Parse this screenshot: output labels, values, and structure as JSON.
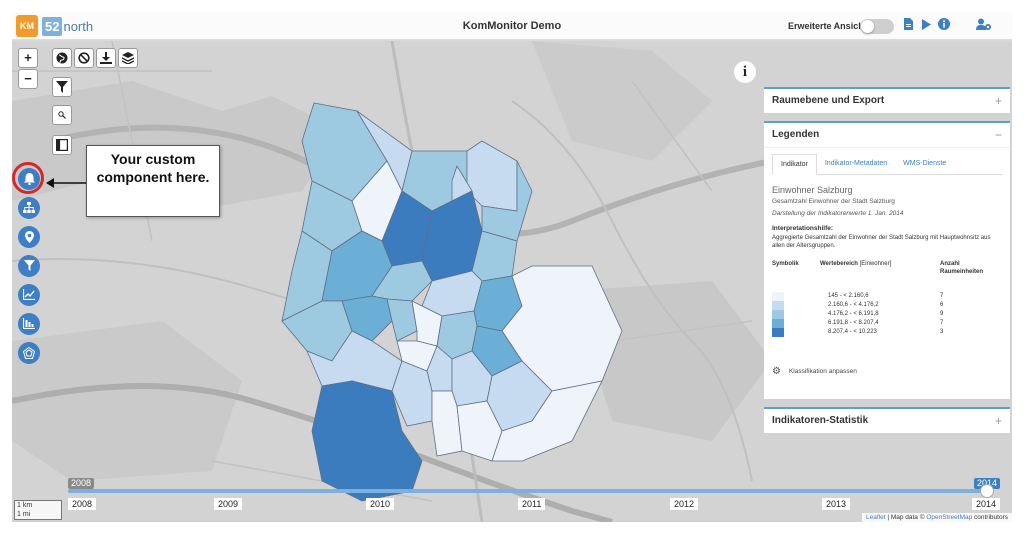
{
  "header": {
    "logo_left": "KM",
    "logo_right_num": "52",
    "logo_right_word": "north",
    "title": "KomMonitor Demo",
    "toggle_label": "Erweiterte Ansicht",
    "icons": [
      "document-icon",
      "play-icon",
      "info-icon",
      "user-settings-icon"
    ]
  },
  "map_controls": {
    "zoom_in": "+",
    "zoom_out": "−",
    "tools": [
      "globe-icon",
      "ban-icon",
      "download-icon",
      "layers-icon"
    ],
    "sidebar_buttons": [
      "bell-icon",
      "sitemap-icon",
      "location-pin-icon",
      "filter-icon",
      "line-chart-icon",
      "bar-chart-icon",
      "radar-icon"
    ]
  },
  "callout": {
    "text": "Your custom component here."
  },
  "info_button": "i",
  "panels": {
    "raumebene": {
      "title": "Raumebene und Export",
      "toggle": "+"
    },
    "legenden": {
      "title": "Legenden",
      "toggle": "−",
      "tabs": [
        "Indikator",
        "Indikator-Metadaten",
        "WMS-Dienste"
      ],
      "active_tab": 0,
      "indicator_title": "Einwohner Salzburg",
      "indicator_subtitle": "Gesamtzahl Einwohner der Stadt Salzburg",
      "indicator_date": "Darstellung der Indikatorenwerte 1. Jan. 2014",
      "hint_heading": "Interpretationshilfe:",
      "hint_text": "Aggregierte Gesamtzahl der Einwohner der Stadt Salzburg mit Hauptwohnsitz aus allen der Altersgruppen.",
      "col_symbolik": "Symbolik",
      "col_wertebereich": "Wertebereich",
      "col_unit": "[Einwohner]",
      "col_anzahl": "Anzahl Raumeinheiten",
      "classes": [
        {
          "range": "145 - < 2.160,6",
          "count": "7",
          "color": "#eff3fa"
        },
        {
          "range": "2.160,6 - < 4.176,2",
          "count": "6",
          "color": "#c6dbef"
        },
        {
          "range": "4.176,2 - < 6.191,8",
          "count": "9",
          "color": "#9ecae1"
        },
        {
          "range": "6.191,8 - < 8.207,4",
          "count": "7",
          "color": "#6baed6"
        },
        {
          "range": "8.207,4 - < 10.223",
          "count": "3",
          "color": "#3a7cbd"
        }
      ],
      "klassifikation": "Klassifikation anpassen"
    },
    "statistik": {
      "title": "Indikatoren-Statistik",
      "toggle": "+"
    }
  },
  "timeline": {
    "years": [
      "2008",
      "2009",
      "2010",
      "2011",
      "2012",
      "2013",
      "2014"
    ],
    "start_flag": "2008",
    "end_flag": "2014",
    "selected_year": "2014"
  },
  "scalebar": {
    "km": "1 km",
    "mi": "1 mi"
  },
  "attribution": {
    "leaflet": "Leaflet",
    "sep": " | Map data © ",
    "osm": "OpenStreetMap",
    "suffix": " contributors"
  },
  "colors": {
    "accent": "#3d80c5",
    "callout_ring": "#d62828",
    "class_1": "#eff3fa",
    "class_2": "#c6dbef",
    "class_3": "#9ecae1",
    "class_4": "#6baed6",
    "class_5": "#3a7cbd"
  }
}
